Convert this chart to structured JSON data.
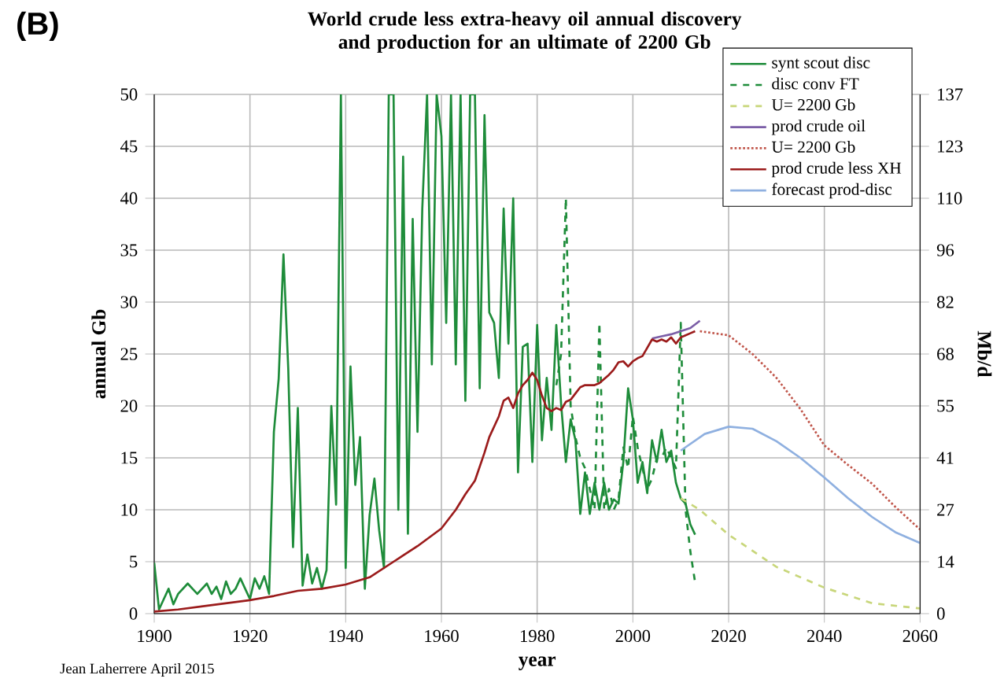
{
  "chart_data": {
    "type": "line",
    "title": "World crude less extra-heavy oil annual discovery and production for an ultimate of 2200 Gb",
    "xlabel": "year",
    "ylabel": "annual  Gb",
    "y2label": "Mb/d",
    "annotations": [
      "(B)",
      "Jean Laherrere April 2015"
    ],
    "xlim": [
      1900,
      2060
    ],
    "xticks": [
      1900,
      1920,
      1940,
      1960,
      1980,
      2000,
      2020,
      2040,
      2060
    ],
    "ylim": [
      0,
      50
    ],
    "yticks": [
      0,
      5,
      10,
      15,
      20,
      25,
      30,
      35,
      40,
      45,
      50
    ],
    "y2lim": [
      0,
      137
    ],
    "y2ticks": [
      0,
      {
        "value": 13.7,
        "label": "14"
      },
      {
        "value": 27.4,
        "label": "27"
      },
      {
        "value": 41.1,
        "label": "41"
      },
      {
        "value": 54.8,
        "label": "55"
      },
      {
        "value": 68.5,
        "label": "68"
      },
      {
        "value": 82.2,
        "label": "82"
      },
      {
        "value": 95.9,
        "label": "96"
      },
      {
        "value": 109.6,
        "label": "110"
      },
      {
        "value": 123.3,
        "label": "123"
      },
      137
    ],
    "grid": true,
    "legend": "top right",
    "marker": "none",
    "series": [
      {
        "name": "synt scout disc",
        "color": "#1e8c3a",
        "line_style": "solid",
        "x": [
          1900,
          1901,
          1902,
          1903,
          1904,
          1905,
          1906,
          1907,
          1908,
          1909,
          1910,
          1911,
          1912,
          1913,
          1914,
          1915,
          1916,
          1917,
          1918,
          1919,
          1920,
          1921,
          1922,
          1923,
          1924,
          1925,
          1926,
          1927,
          1928,
          1929,
          1930,
          1931,
          1932,
          1933,
          1934,
          1935,
          1936,
          1937,
          1938,
          1939,
          1940,
          1941,
          1942,
          1943,
          1944,
          1945,
          1946,
          1947,
          1948,
          1949,
          1950,
          1951,
          1952,
          1953,
          1954,
          1955,
          1956,
          1957,
          1958,
          1959,
          1960,
          1961,
          1962,
          1963,
          1964,
          1965,
          1966,
          1967,
          1968,
          1969,
          1970,
          1971,
          1972,
          1973,
          1974,
          1975,
          1976,
          1977,
          1978,
          1979,
          1980,
          1981,
          1982,
          1983,
          1984,
          1985,
          1986,
          1987,
          1988,
          1989,
          1990,
          1991,
          1992,
          1993,
          1994,
          1995,
          1996,
          1997,
          1998,
          1999,
          2000,
          2001,
          2002,
          2003,
          2004,
          2005,
          2006,
          2007,
          2008,
          2009,
          2010,
          2011,
          2012,
          2013
        ],
        "values": [
          4.9,
          0.4,
          1.4,
          2.4,
          0.9,
          1.9,
          2.4,
          2.9,
          2.4,
          1.9,
          2.4,
          2.9,
          1.9,
          2.6,
          1.4,
          3.1,
          1.9,
          2.4,
          3.4,
          2.4,
          1.4,
          3.4,
          2.4,
          3.6,
          1.9,
          17.5,
          22.6,
          34.6,
          23.6,
          6.4,
          19.8,
          2.7,
          5.7,
          2.9,
          4.4,
          2.4,
          4.2,
          20,
          10.5,
          50,
          4.4,
          23.8,
          12.4,
          17,
          2.4,
          9.5,
          13,
          8,
          4.4,
          50,
          50,
          10,
          44,
          7.7,
          38,
          17.5,
          39,
          50,
          24,
          50,
          46,
          28,
          50,
          24,
          50,
          20.5,
          50,
          50,
          21.7,
          48,
          29,
          28,
          22.7,
          39,
          26,
          40,
          13.6,
          25.7,
          26,
          14.6,
          27.8,
          16.7,
          22.7,
          17.7,
          27.8,
          20.2,
          14.6,
          18.7,
          16.7,
          9.6,
          13.6,
          9.6,
          12.6,
          10,
          12.6,
          10,
          11,
          10.6,
          14.6,
          21.7,
          18.7,
          12.6,
          14.6,
          11.6,
          16.7,
          14.6,
          17.7,
          14.6,
          15.7,
          12.6,
          11.1,
          10.6,
          8.6,
          7.6
        ]
      },
      {
        "name": "disc conv FT",
        "color": "#1e8c3a",
        "line_style": "dashed",
        "x": [
          1984,
          1985,
          1986,
          1987,
          1988,
          1989,
          1990,
          1991,
          1992,
          1993,
          1994,
          1995,
          1996,
          1997,
          1998,
          1999,
          2000,
          2001,
          2002,
          2003,
          2004,
          2005,
          2006,
          2007,
          2008,
          2009,
          2010,
          2011,
          2012,
          2013
        ],
        "values": [
          22,
          25,
          40,
          20,
          17,
          15,
          14,
          12,
          10,
          28,
          10,
          12,
          10,
          11,
          16,
          14,
          19,
          16,
          14,
          12,
          13,
          15,
          15,
          16,
          15,
          14,
          28,
          10,
          6,
          3
        ]
      },
      {
        "name": "U= 2200 Gb",
        "color": "#c8d67a",
        "line_style": "dashed",
        "x": [
          2010,
          2014,
          2020,
          2030,
          2040,
          2050,
          2060
        ],
        "values": [
          11.1,
          10,
          7.6,
          4.5,
          2.5,
          1,
          0.5
        ]
      },
      {
        "name": "prod crude oil",
        "color": "#7b5ea7",
        "line_style": "solid",
        "x": [
          2004,
          2006,
          2008,
          2010,
          2012,
          2014
        ],
        "values": [
          26.5,
          26.7,
          26.9,
          27.2,
          27.5,
          28.2
        ]
      },
      {
        "name": "U= 2200 Gb",
        "color": "#c0554a",
        "line_style": "dotted",
        "x": [
          2014,
          2020,
          2025,
          2030,
          2035,
          2040,
          2045,
          2050,
          2055,
          2060
        ],
        "values": [
          27.2,
          26.8,
          25,
          22.7,
          19.7,
          16.2,
          14.3,
          12.5,
          10.2,
          8.1
        ]
      },
      {
        "name": "prod crude less XH",
        "color": "#9b1b1b",
        "line_style": "solid",
        "x": [
          1900,
          1905,
          1910,
          1915,
          1920,
          1925,
          1930,
          1935,
          1940,
          1945,
          1950,
          1955,
          1960,
          1963,
          1965,
          1967,
          1969,
          1970,
          1972,
          1973,
          1974,
          1975,
          1976,
          1977,
          1978,
          1979,
          1980,
          1981,
          1982,
          1983,
          1984,
          1985,
          1986,
          1987,
          1988,
          1989,
          1990,
          1991,
          1992,
          1993,
          1994,
          1995,
          1996,
          1997,
          1998,
          1999,
          2000,
          2001,
          2002,
          2003,
          2004,
          2005,
          2006,
          2007,
          2008,
          2009,
          2010,
          2011,
          2012,
          2013
        ],
        "values": [
          0.2,
          0.4,
          0.7,
          1.0,
          1.3,
          1.7,
          2.2,
          2.4,
          2.8,
          3.5,
          5.0,
          6.5,
          8.2,
          10.0,
          11.5,
          12.8,
          15.5,
          17,
          19,
          20.5,
          20.8,
          19.8,
          21.2,
          22,
          22.5,
          23.2,
          22.5,
          21,
          19.8,
          19.5,
          19.8,
          19.6,
          20.4,
          20.6,
          21.2,
          21.8,
          22,
          22,
          22,
          22.2,
          22.6,
          23,
          23.5,
          24.2,
          24.3,
          23.8,
          24.3,
          24.6,
          24.8,
          25.6,
          26.4,
          26.2,
          26.4,
          26.2,
          26.6,
          26,
          26.6,
          26.8,
          27,
          27.2
        ]
      },
      {
        "name": "forecast prod-disc",
        "color": "#8fb0e0",
        "line_style": "solid",
        "x": [
          2010,
          2015,
          2020,
          2025,
          2030,
          2035,
          2040,
          2045,
          2050,
          2055,
          2060
        ],
        "values": [
          15.7,
          17.3,
          18,
          17.8,
          16.6,
          15,
          13.1,
          11.1,
          9.3,
          7.8,
          6.8
        ]
      }
    ]
  }
}
